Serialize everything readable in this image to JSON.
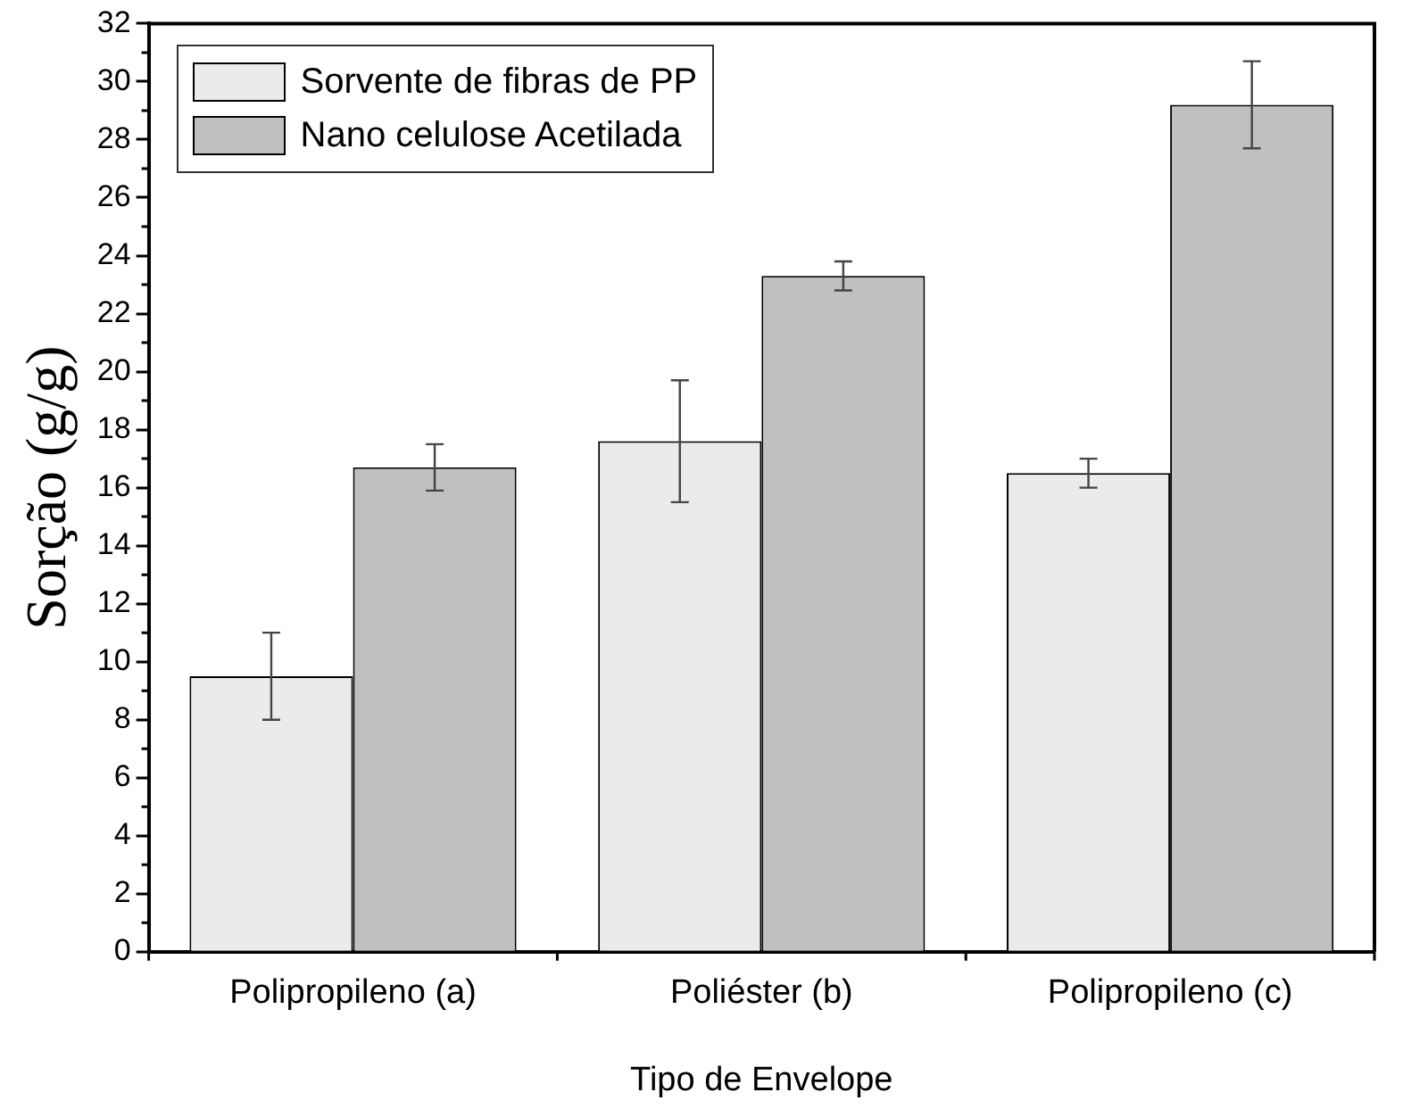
{
  "chart_data": {
    "type": "bar",
    "xlabel": "Tipo de Envelope",
    "ylabel": "Sorção (g/g)",
    "categories": [
      "Polipropileno (a)",
      "Poliéster (b)",
      "Polipropileno (c)"
    ],
    "series": [
      {
        "name": "Sorvente de fibras de PP",
        "color": "#ebebeb",
        "values": [
          9.5,
          17.6,
          16.5
        ],
        "errors": [
          1.5,
          2.1,
          0.5
        ]
      },
      {
        "name": "Nano celulose Acetilada",
        "color": "#c0c0c0",
        "values": [
          16.7,
          23.3,
          29.2
        ],
        "errors": [
          0.8,
          0.5,
          1.5
        ]
      }
    ],
    "ylim": [
      0,
      32
    ],
    "yticks": [
      0,
      2,
      4,
      6,
      8,
      10,
      12,
      14,
      16,
      18,
      20,
      22,
      24,
      26,
      28,
      30,
      32
    ],
    "grid": false,
    "legend": "top left"
  }
}
